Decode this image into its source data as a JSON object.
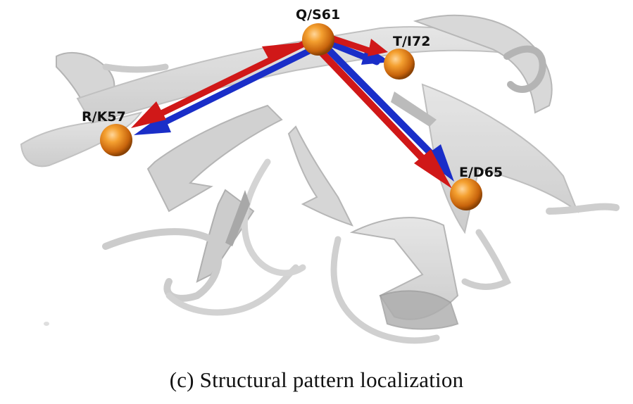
{
  "figure": {
    "caption": "(c) Structural pattern localization",
    "residues": [
      {
        "id": "q61",
        "label": "Q/S61"
      },
      {
        "id": "t72",
        "label": "T/I72"
      },
      {
        "id": "r57",
        "label": "R/K57"
      },
      {
        "id": "e65",
        "label": "E/D65"
      }
    ],
    "colors": {
      "ribbon_fill": "#d6d6d6",
      "ribbon_stroke": "#b4b4b4",
      "ribbon_dark": "#9a9a9a",
      "arrow_red": "#d01818",
      "arrow_blue": "#1a2ec8",
      "sphere_orange": "#e9871c"
    }
  }
}
